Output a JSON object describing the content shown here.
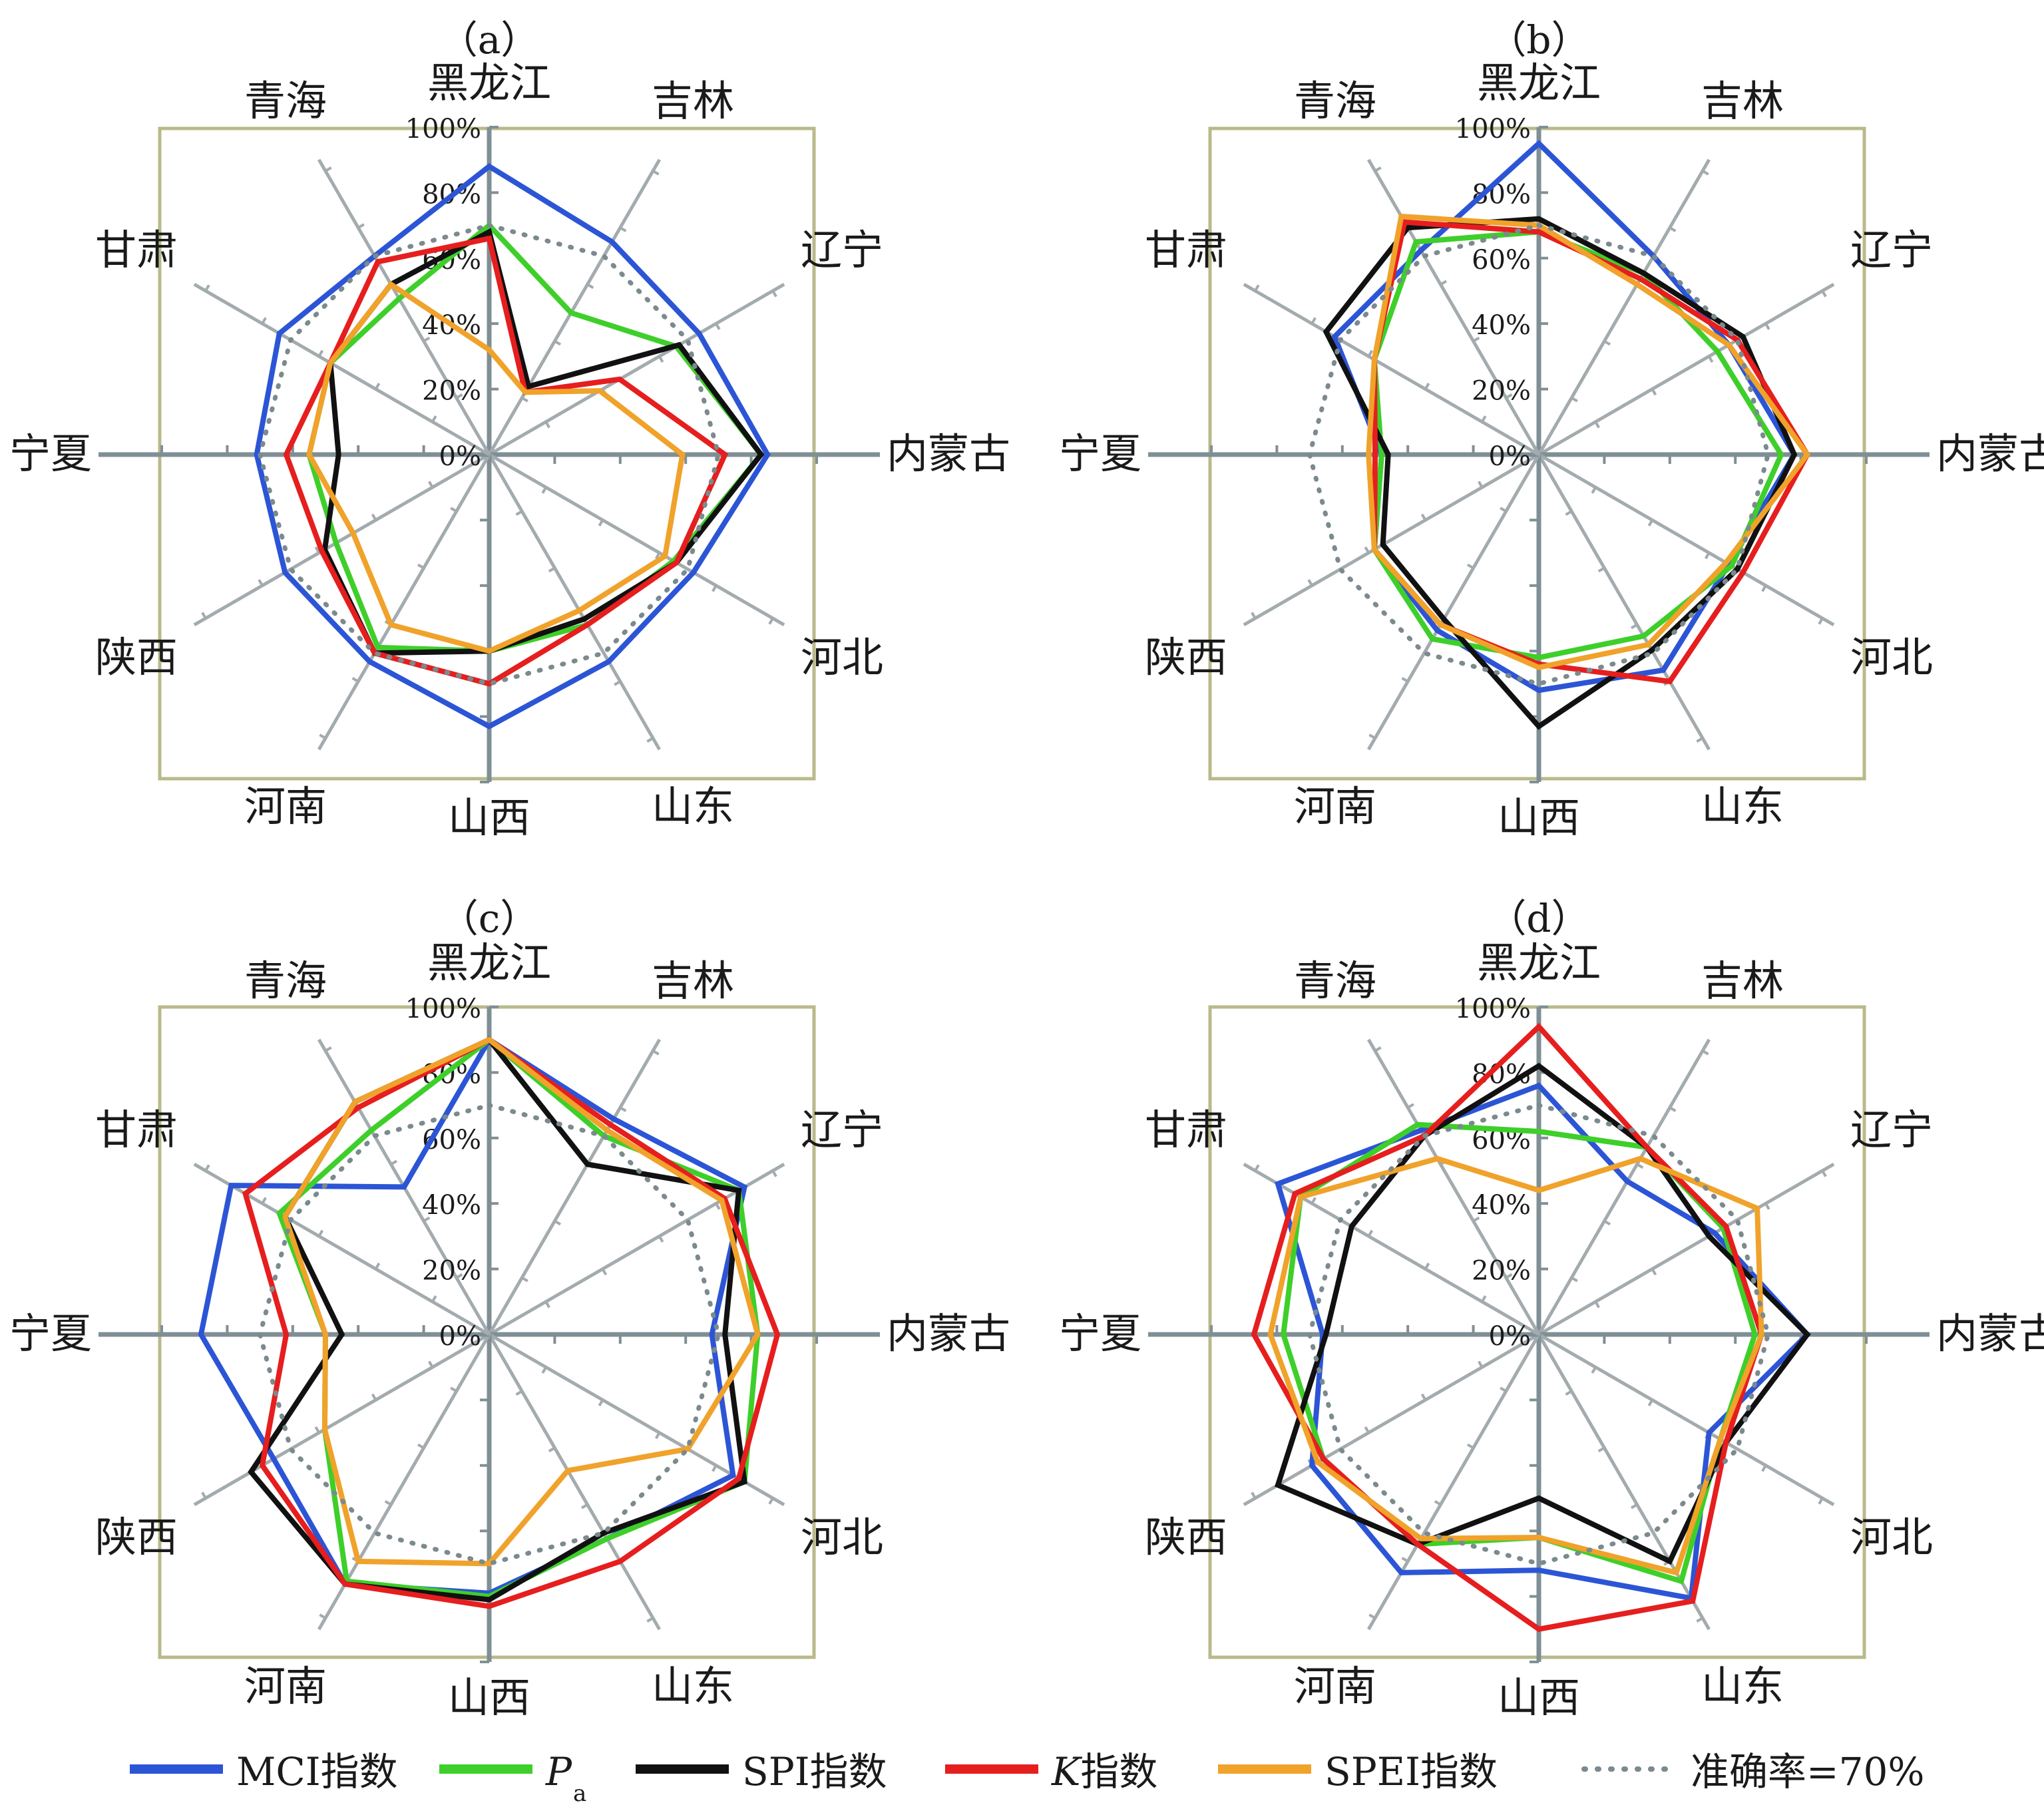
{
  "chart_data": [
    {
      "type": "radar",
      "title": "（a）",
      "axes": [
        "黑龙江",
        "吉林",
        "辽宁",
        "内蒙古",
        "河北",
        "山东",
        "山西",
        "河南",
        "陕西",
        "宁夏",
        "甘肃",
        "青海"
      ],
      "tick_labels": [
        "0%",
        "20%",
        "40%",
        "60%",
        "80%",
        "100%"
      ],
      "ylim": [
        0,
        100
      ],
      "grid": true,
      "series": [
        {
          "name": "MCI指数",
          "values": [
            88,
            75,
            74,
            85,
            72,
            73,
            83,
            73,
            72,
            71,
            74,
            70
          ]
        },
        {
          "name": "Pa",
          "values": [
            70,
            50,
            66,
            83,
            65,
            60,
            60,
            68,
            54,
            55,
            56,
            55
          ]
        },
        {
          "name": "SPI指数",
          "values": [
            68,
            24,
            67,
            83,
            66,
            58,
            60,
            70,
            58,
            46,
            56,
            60
          ]
        },
        {
          "name": "K指数",
          "values": [
            66,
            22,
            46,
            72,
            66,
            60,
            70,
            70,
            59,
            62,
            56,
            68
          ]
        },
        {
          "name": "SPEI指数",
          "values": [
            32,
            22,
            39,
            59,
            62,
            55,
            60,
            60,
            48,
            55,
            56,
            60
          ]
        },
        {
          "name": "准确率=70%",
          "values": [
            70,
            70,
            70,
            70,
            70,
            70,
            70,
            70,
            70,
            70,
            70,
            70
          ]
        }
      ]
    },
    {
      "type": "radar",
      "title": "（b）",
      "axes": [
        "黑龙江",
        "吉林",
        "辽宁",
        "内蒙古",
        "河北",
        "山东",
        "山西",
        "河南",
        "陕西",
        "宁夏",
        "甘肃",
        "青海"
      ],
      "tick_labels": [
        "0%",
        "20%",
        "40%",
        "60%",
        "80%",
        "100%"
      ],
      "ylim": [
        0,
        100
      ],
      "grid": true,
      "series": [
        {
          "name": "MCI指数",
          "values": [
            95,
            70,
            67,
            78,
            67,
            76,
            72,
            62,
            58,
            48,
            72,
            72
          ]
        },
        {
          "name": "Pa",
          "values": [
            68,
            64,
            63,
            74,
            68,
            64,
            62,
            65,
            58,
            48,
            58,
            75
          ]
        },
        {
          "name": "SPI指数",
          "values": [
            72,
            64,
            72,
            78,
            70,
            69,
            83,
            58,
            55,
            46,
            75,
            80
          ]
        },
        {
          "name": "K指数",
          "values": [
            68,
            62,
            70,
            82,
            72,
            80,
            64,
            60,
            58,
            50,
            58,
            82
          ]
        },
        {
          "name": "SPEI指数",
          "values": [
            70,
            60,
            67,
            82,
            66,
            67,
            65,
            60,
            58,
            52,
            58,
            84
          ]
        },
        {
          "name": "准确率=70%",
          "values": [
            70,
            70,
            70,
            70,
            70,
            70,
            70,
            70,
            70,
            70,
            70,
            70
          ]
        }
      ]
    },
    {
      "type": "radar",
      "title": "（c）",
      "axes": [
        "黑龙江",
        "吉林",
        "辽宁",
        "内蒙古",
        "河北",
        "山东",
        "山西",
        "河南",
        "陕西",
        "宁夏",
        "甘肃",
        "青海"
      ],
      "tick_labels": [
        "0%",
        "20%",
        "40%",
        "60%",
        "80%",
        "100%"
      ],
      "ylim": [
        0,
        100
      ],
      "grid": true,
      "series": [
        {
          "name": "MCI指数",
          "values": [
            90,
            76,
            90,
            68,
            86,
            72,
            79,
            88,
            76,
            88,
            91,
            52
          ]
        },
        {
          "name": "Pa",
          "values": [
            90,
            70,
            88,
            82,
            90,
            72,
            80,
            87,
            58,
            50,
            74,
            72
          ]
        },
        {
          "name": "SPI指数",
          "values": [
            90,
            60,
            88,
            72,
            90,
            70,
            81,
            88,
            84,
            45,
            72,
            82
          ]
        },
        {
          "name": "K指数",
          "values": [
            90,
            74,
            83,
            88,
            88,
            80,
            83,
            88,
            80,
            62,
            86,
            80
          ]
        },
        {
          "name": "SPEI指数",
          "values": [
            90,
            72,
            82,
            82,
            70,
            48,
            70,
            80,
            58,
            50,
            72,
            82
          ]
        },
        {
          "name": "准确率=70%",
          "values": [
            70,
            70,
            70,
            70,
            70,
            70,
            70,
            70,
            70,
            70,
            70,
            70
          ]
        }
      ]
    },
    {
      "type": "radar",
      "title": "（d）",
      "axes": [
        "黑龙江",
        "吉林",
        "辽宁",
        "内蒙古",
        "河北",
        "山东",
        "山西",
        "河南",
        "陕西",
        "宁夏",
        "甘肃",
        "青海"
      ],
      "tick_labels": [
        "0%",
        "20%",
        "40%",
        "60%",
        "80%",
        "100%"
      ],
      "ylim": [
        0,
        100
      ],
      "grid": true,
      "series": [
        {
          "name": "MCI指数",
          "values": [
            76,
            54,
            62,
            82,
            60,
            93,
            72,
            84,
            80,
            66,
            92,
            72
          ]
        },
        {
          "name": "Pa",
          "values": [
            62,
            66,
            65,
            66,
            64,
            87,
            62,
            74,
            76,
            78,
            84,
            74
          ]
        },
        {
          "name": "SPI指数",
          "values": [
            82,
            66,
            60,
            82,
            66,
            80,
            50,
            74,
            92,
            65,
            66,
            70
          ]
        },
        {
          "name": "K指数",
          "values": [
            94,
            66,
            66,
            68,
            66,
            94,
            90,
            74,
            76,
            87,
            86,
            70
          ]
        },
        {
          "name": "SPEI指数",
          "values": [
            44,
            62,
            77,
            68,
            64,
            84,
            62,
            72,
            78,
            82,
            84,
            62
          ]
        },
        {
          "name": "准确率=70%",
          "values": [
            70,
            70,
            70,
            70,
            70,
            70,
            70,
            70,
            70,
            70,
            70,
            70
          ]
        }
      ]
    }
  ],
  "legend": [
    {
      "label": "MCI指数",
      "color": "#2c55d6",
      "style": "solid"
    },
    {
      "label": "P",
      "sub": "a",
      "color": "#3ecf2a",
      "style": "solid",
      "italic": true
    },
    {
      "label": "SPI指数",
      "color": "#111111",
      "style": "solid"
    },
    {
      "label": "K指数",
      "color": "#e61e1e",
      "style": "solid",
      "italic_prefix": "K"
    },
    {
      "label": "SPEI指数",
      "color": "#f0a22a",
      "style": "solid"
    },
    {
      "label": "准确率=70%",
      "color": "#7b8a8e",
      "style": "dotted"
    }
  ],
  "colors": {
    "box": "#b9b98a",
    "axis_main": "#7f8f95",
    "axis_diag": "#a3abae",
    "MCI": "#2c55d6",
    "Pa": "#3ecf2a",
    "SPI": "#111111",
    "K": "#e61e1e",
    "SPEI": "#f0a22a",
    "ref": "#7b8a8e"
  }
}
